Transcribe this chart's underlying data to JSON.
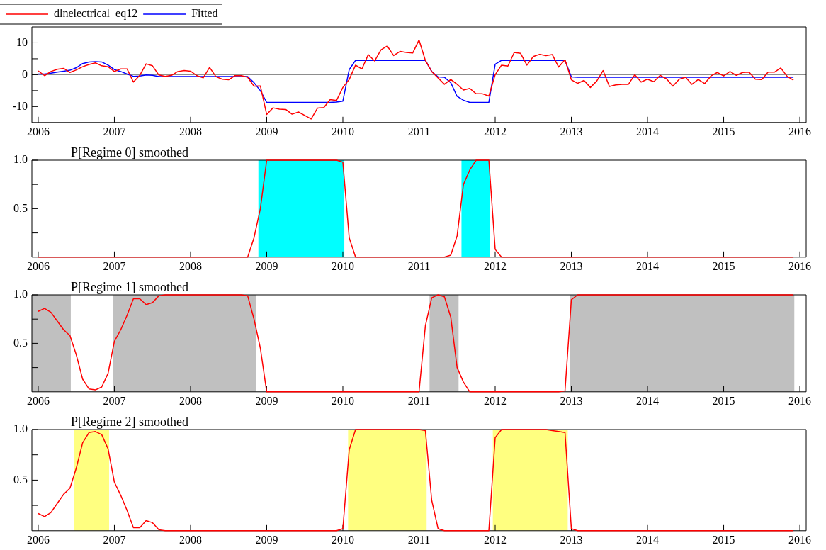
{
  "chart_data": [
    {
      "type": "line",
      "legend": "top left",
      "grid": false,
      "x": [
        "2006-01",
        "2006-02",
        "2006-03",
        "2006-04",
        "2006-05",
        "2006-06",
        "2006-07",
        "2006-08",
        "2006-09",
        "2006-10",
        "2006-11",
        "2006-12",
        "2007-01",
        "2007-02",
        "2007-03",
        "2007-04",
        "2007-05",
        "2007-06",
        "2007-07",
        "2007-08",
        "2007-09",
        "2007-10",
        "2007-11",
        "2007-12",
        "2008-01",
        "2008-02",
        "2008-03",
        "2008-04",
        "2008-05",
        "2008-06",
        "2008-07",
        "2008-08",
        "2008-09",
        "2008-10",
        "2008-11",
        "2008-12",
        "2009-01",
        "2009-02",
        "2009-03",
        "2009-04",
        "2009-05",
        "2009-06",
        "2009-07",
        "2009-08",
        "2009-09",
        "2009-10",
        "2009-11",
        "2009-12",
        "2010-01",
        "2010-02",
        "2010-03",
        "2010-04",
        "2010-05",
        "2010-06",
        "2010-07",
        "2010-08",
        "2010-09",
        "2010-10",
        "2010-11",
        "2010-12",
        "2011-01",
        "2011-02",
        "2011-03",
        "2011-04",
        "2011-05",
        "2011-06",
        "2011-07",
        "2011-08",
        "2011-09",
        "2011-10",
        "2011-11",
        "2011-12",
        "2012-01",
        "2012-02",
        "2012-03",
        "2012-04",
        "2012-05",
        "2012-06",
        "2012-07",
        "2012-08",
        "2012-09",
        "2012-10",
        "2012-11",
        "2012-12",
        "2013-01",
        "2013-02",
        "2013-03",
        "2013-04",
        "2013-05",
        "2013-06",
        "2013-07",
        "2013-08",
        "2013-09",
        "2013-10",
        "2013-11",
        "2013-12",
        "2014-01",
        "2014-02",
        "2014-03",
        "2014-04",
        "2014-05",
        "2014-06",
        "2014-07",
        "2014-08",
        "2014-09",
        "2014-10",
        "2014-11",
        "2014-12",
        "2015-01",
        "2015-02",
        "2015-03",
        "2015-04",
        "2015-05",
        "2015-06",
        "2015-07",
        "2015-08",
        "2015-09",
        "2015-10",
        "2015-11",
        "2015-12"
      ],
      "xlim": [
        "2005-12",
        "2016-02"
      ],
      "xticks": [
        "2006",
        "2007",
        "2008",
        "2009",
        "2010",
        "2011",
        "2012",
        "2013",
        "2014",
        "2015",
        "2016"
      ],
      "ylim": [
        -15,
        15
      ],
      "yticks": [
        -10,
        {
          "value": -5,
          "label": null
        },
        0,
        {
          "value": 5,
          "label": null
        },
        10
      ],
      "ref_lines": [
        {
          "axis": "y",
          "value": 0,
          "color": "#808080"
        }
      ],
      "series": [
        {
          "name": "dlnelectrical_eq12",
          "color": "#ff0000",
          "values": [
            1.2,
            -0.3,
            1.0,
            1.7,
            2.0,
            0.7,
            1.5,
            2.5,
            3.2,
            3.7,
            2.8,
            2.5,
            1.0,
            1.8,
            1.8,
            -2.3,
            -0.2,
            3.4,
            2.8,
            -0.1,
            -0.5,
            -0.2,
            1.0,
            1.3,
            1.1,
            -0.3,
            -1.0,
            2.3,
            -0.6,
            -1.4,
            -1.6,
            -0.3,
            -0.3,
            -0.8,
            -3.6,
            -3.5,
            -12.5,
            -10.4,
            -10.8,
            -10.9,
            -12.4,
            -11.7,
            -12.8,
            -13.9,
            -10.5,
            -10.3,
            -7.8,
            -8.1,
            -4.0,
            -1.5,
            3.0,
            1.8,
            6.3,
            4.3,
            7.8,
            9.0,
            6.0,
            7.3,
            7.0,
            6.8,
            10.9,
            4.5,
            1.0,
            -1.0,
            -3.0,
            -1.5,
            -3.0,
            -4.8,
            -4.3,
            -6.0,
            -6.0,
            -6.7,
            0.0,
            3.0,
            2.7,
            7.0,
            6.7,
            3.0,
            5.7,
            6.4,
            6.0,
            6.3,
            2.4,
            4.7,
            -1.6,
            -2.7,
            -1.8,
            -4.0,
            -2.0,
            1.3,
            -3.7,
            -3.2,
            -3.0,
            -3.0,
            0.0,
            -2.3,
            -1.4,
            -2.2,
            -0.2,
            -1.3,
            -3.6,
            -1.4,
            -0.8,
            -3.0,
            -1.5,
            -2.8,
            -0.4,
            0.7,
            -0.4,
            1.0,
            -0.2,
            0.7,
            0.8,
            -1.4,
            -1.5,
            0.8,
            0.8,
            2.1,
            -0.5,
            -1.7
          ]
        },
        {
          "name": "Fitted",
          "color": "#0000ff",
          "values": [
            0.2,
            0.2,
            0.5,
            0.8,
            1.1,
            1.4,
            2.2,
            3.5,
            4.0,
            4.1,
            4.0,
            3.0,
            1.6,
            1.0,
            0.2,
            -0.5,
            -0.4,
            -0.1,
            -0.2,
            -0.6,
            -0.6,
            -0.6,
            -0.6,
            -0.6,
            -0.6,
            -0.6,
            -0.6,
            -0.6,
            -0.6,
            -0.6,
            -0.6,
            -0.6,
            -0.6,
            -0.6,
            -2.5,
            -5.0,
            -8.7,
            -8.7,
            -8.7,
            -8.7,
            -8.7,
            -8.7,
            -8.7,
            -8.7,
            -8.7,
            -8.7,
            -8.7,
            -8.6,
            -8.3,
            1.6,
            4.5,
            4.5,
            4.5,
            4.5,
            4.5,
            4.5,
            4.5,
            4.5,
            4.5,
            4.5,
            4.5,
            4.5,
            1.0,
            -0.7,
            -0.8,
            -2.5,
            -6.8,
            -8.0,
            -8.7,
            -8.7,
            -8.7,
            -8.7,
            3.3,
            4.5,
            4.5,
            4.5,
            4.5,
            4.5,
            4.5,
            4.5,
            4.5,
            4.5,
            4.5,
            4.5,
            -0.7,
            -0.8,
            -0.8,
            -0.8,
            -0.8,
            -0.8,
            -0.8,
            -0.8,
            -0.8,
            -0.8,
            -0.8,
            -0.8,
            -0.8,
            -0.8,
            -0.8,
            -0.8,
            -0.8,
            -0.8,
            -0.8,
            -0.8,
            -0.8,
            -0.8,
            -0.8,
            -0.8,
            -0.8,
            -0.8,
            -0.8,
            -0.8,
            -0.8,
            -0.8,
            -0.8,
            -0.8,
            -0.8,
            -0.8,
            -0.8,
            -0.8
          ]
        }
      ]
    },
    {
      "type": "line",
      "title": "P[Regime 0] smoothed",
      "grid": false,
      "x": [
        "2006-01",
        "2006-02",
        "2006-03",
        "2006-04",
        "2006-05",
        "2006-06",
        "2006-07",
        "2006-08",
        "2006-09",
        "2006-10",
        "2006-11",
        "2006-12",
        "2007-01",
        "2007-02",
        "2007-03",
        "2007-04",
        "2007-05",
        "2007-06",
        "2007-07",
        "2007-08",
        "2007-09",
        "2007-10",
        "2007-11",
        "2007-12",
        "2008-01",
        "2008-02",
        "2008-03",
        "2008-04",
        "2008-05",
        "2008-06",
        "2008-07",
        "2008-08",
        "2008-09",
        "2008-10",
        "2008-11",
        "2008-12",
        "2009-01",
        "2009-02",
        "2009-03",
        "2009-04",
        "2009-05",
        "2009-06",
        "2009-07",
        "2009-08",
        "2009-09",
        "2009-10",
        "2009-11",
        "2009-12",
        "2010-01",
        "2010-02",
        "2010-03",
        "2010-04",
        "2010-05",
        "2010-06",
        "2010-07",
        "2010-08",
        "2010-09",
        "2010-10",
        "2010-11",
        "2010-12",
        "2011-01",
        "2011-02",
        "2011-03",
        "2011-04",
        "2011-05",
        "2011-06",
        "2011-07",
        "2011-08",
        "2011-09",
        "2011-10",
        "2011-11",
        "2011-12",
        "2012-01",
        "2012-02",
        "2012-03",
        "2012-04",
        "2012-05",
        "2012-06",
        "2012-07",
        "2012-08",
        "2012-09",
        "2012-10",
        "2012-11",
        "2012-12",
        "2013-01",
        "2013-02",
        "2013-03",
        "2013-04",
        "2013-05",
        "2013-06",
        "2013-07",
        "2013-08",
        "2013-09",
        "2013-10",
        "2013-11",
        "2013-12",
        "2014-01",
        "2014-02",
        "2014-03",
        "2014-04",
        "2014-05",
        "2014-06",
        "2014-07",
        "2014-08",
        "2014-09",
        "2014-10",
        "2014-11",
        "2014-12",
        "2015-01",
        "2015-02",
        "2015-03",
        "2015-04",
        "2015-05",
        "2015-06",
        "2015-07",
        "2015-08",
        "2015-09",
        "2015-10",
        "2015-11",
        "2015-12"
      ],
      "xlim": [
        "2005-12",
        "2016-02"
      ],
      "xticks": [
        "2006",
        "2007",
        "2008",
        "2009",
        "2010",
        "2011",
        "2012",
        "2013",
        "2014",
        "2015",
        "2016"
      ],
      "ylim": [
        0,
        1
      ],
      "yticks": [
        {
          "value": 0.25,
          "label": null
        },
        0.5,
        {
          "value": 0.75,
          "label": null
        },
        {
          "value": 1,
          "label": "1.0"
        }
      ],
      "bands": [
        {
          "axis": "x",
          "from": "2008-11-22",
          "to": "2010-01-08",
          "color": "#00ffff"
        },
        {
          "axis": "x",
          "from": "2011-07-22",
          "to": "2011-12-06",
          "color": "#00ffff"
        }
      ],
      "series": [
        {
          "color": "#ff0000",
          "values": [
            0,
            0,
            0,
            0,
            0,
            0,
            0,
            0,
            0,
            0,
            0,
            0,
            0,
            0,
            0,
            0,
            0,
            0,
            0,
            0,
            0,
            0,
            0,
            0,
            0,
            0,
            0,
            0,
            0,
            0,
            0,
            0,
            0,
            0,
            0.2,
            0.5,
            1,
            1,
            1,
            1,
            1,
            1,
            1,
            1,
            1,
            1,
            1,
            1,
            0.98,
            0.2,
            0,
            0,
            0,
            0,
            0,
            0,
            0,
            0,
            0,
            0,
            0,
            0,
            0,
            0,
            0,
            0.02,
            0.22,
            0.75,
            0.9,
            1,
            1,
            1,
            0.08,
            0,
            0,
            0,
            0,
            0,
            0,
            0,
            0,
            0,
            0,
            0,
            0,
            0,
            0,
            0,
            0,
            0,
            0,
            0,
            0,
            0,
            0,
            0,
            0,
            0,
            0,
            0,
            0,
            0,
            0,
            0,
            0,
            0,
            0,
            0,
            0,
            0,
            0,
            0,
            0,
            0,
            0,
            0,
            0,
            0,
            0,
            0
          ]
        }
      ]
    },
    {
      "type": "line",
      "title": "P[Regime 1] smoothed",
      "grid": false,
      "x": [
        "2006-01",
        "2006-02",
        "2006-03",
        "2006-04",
        "2006-05",
        "2006-06",
        "2006-07",
        "2006-08",
        "2006-09",
        "2006-10",
        "2006-11",
        "2006-12",
        "2007-01",
        "2007-02",
        "2007-03",
        "2007-04",
        "2007-05",
        "2007-06",
        "2007-07",
        "2007-08",
        "2007-09",
        "2007-10",
        "2007-11",
        "2007-12",
        "2008-01",
        "2008-02",
        "2008-03",
        "2008-04",
        "2008-05",
        "2008-06",
        "2008-07",
        "2008-08",
        "2008-09",
        "2008-10",
        "2008-11",
        "2008-12",
        "2009-01",
        "2009-02",
        "2009-03",
        "2009-04",
        "2009-05",
        "2009-06",
        "2009-07",
        "2009-08",
        "2009-09",
        "2009-10",
        "2009-11",
        "2009-12",
        "2010-01",
        "2010-02",
        "2010-03",
        "2010-04",
        "2010-05",
        "2010-06",
        "2010-07",
        "2010-08",
        "2010-09",
        "2010-10",
        "2010-11",
        "2010-12",
        "2011-01",
        "2011-02",
        "2011-03",
        "2011-04",
        "2011-05",
        "2011-06",
        "2011-07",
        "2011-08",
        "2011-09",
        "2011-10",
        "2011-11",
        "2011-12",
        "2012-01",
        "2012-02",
        "2012-03",
        "2012-04",
        "2012-05",
        "2012-06",
        "2012-07",
        "2012-08",
        "2012-09",
        "2012-10",
        "2012-11",
        "2012-12",
        "2013-01",
        "2013-02",
        "2013-03",
        "2013-04",
        "2013-05",
        "2013-06",
        "2013-07",
        "2013-08",
        "2013-09",
        "2013-10",
        "2013-11",
        "2013-12",
        "2014-01",
        "2014-02",
        "2014-03",
        "2014-04",
        "2014-05",
        "2014-06",
        "2014-07",
        "2014-08",
        "2014-09",
        "2014-10",
        "2014-11",
        "2014-12",
        "2015-01",
        "2015-02",
        "2015-03",
        "2015-04",
        "2015-05",
        "2015-06",
        "2015-07",
        "2015-08",
        "2015-09",
        "2015-10",
        "2015-11",
        "2015-12"
      ],
      "xlim": [
        "2005-12",
        "2016-02"
      ],
      "xticks": [
        "2006",
        "2007",
        "2008",
        "2009",
        "2010",
        "2011",
        "2012",
        "2013",
        "2014",
        "2015",
        "2016"
      ],
      "ylim": [
        0,
        1
      ],
      "yticks": [
        {
          "value": 0.25,
          "label": null
        },
        0.5,
        {
          "value": 0.75,
          "label": null
        },
        {
          "value": 1,
          "label": "1.0"
        }
      ],
      "bands": [
        {
          "axis": "x",
          "from": "2005-12",
          "to": "2006-06-05",
          "color": "#c0c0c0"
        },
        {
          "axis": "x",
          "from": "2006-12-24",
          "to": "2008-11-12",
          "color": "#c0c0c0"
        },
        {
          "axis": "x",
          "from": "2011-02-21",
          "to": "2011-07-08",
          "color": "#c0c0c0"
        },
        {
          "axis": "x",
          "from": "2012-12-24",
          "to": "2015-12-05",
          "color": "#c0c0c0"
        }
      ],
      "series": [
        {
          "color": "#ff0000",
          "values": [
            0.83,
            0.86,
            0.82,
            0.73,
            0.64,
            0.58,
            0.38,
            0.13,
            0.03,
            0.02,
            0.05,
            0.19,
            0.52,
            0.64,
            0.79,
            0.96,
            0.96,
            0.9,
            0.92,
            0.99,
            1,
            1,
            1,
            1,
            1,
            1,
            1,
            1,
            1,
            1,
            1,
            1,
            1,
            0.99,
            0.75,
            0.45,
            0,
            0,
            0,
            0,
            0,
            0,
            0,
            0,
            0,
            0,
            0,
            0,
            0,
            0,
            0,
            0,
            0,
            0,
            0,
            0,
            0,
            0,
            0,
            0,
            0,
            0.68,
            0.97,
            1,
            0.98,
            0.77,
            0.25,
            0.1,
            0,
            0,
            0,
            0,
            0,
            0,
            0,
            0,
            0,
            0,
            0,
            0,
            0,
            0,
            0,
            0.01,
            0.95,
            1,
            1,
            1,
            1,
            1,
            1,
            1,
            1,
            1,
            1,
            1,
            1,
            1,
            1,
            1,
            1,
            1,
            1,
            1,
            1,
            1,
            1,
            1,
            1,
            1,
            1,
            1,
            1,
            1,
            1,
            1,
            1,
            1,
            1,
            1
          ]
        }
      ]
    },
    {
      "type": "line",
      "title": "P[Regime 2] smoothed",
      "grid": false,
      "x": [
        "2006-01",
        "2006-02",
        "2006-03",
        "2006-04",
        "2006-05",
        "2006-06",
        "2006-07",
        "2006-08",
        "2006-09",
        "2006-10",
        "2006-11",
        "2006-12",
        "2007-01",
        "2007-02",
        "2007-03",
        "2007-04",
        "2007-05",
        "2007-06",
        "2007-07",
        "2007-08",
        "2007-09",
        "2007-10",
        "2007-11",
        "2007-12",
        "2008-01",
        "2008-02",
        "2008-03",
        "2008-04",
        "2008-05",
        "2008-06",
        "2008-07",
        "2008-08",
        "2008-09",
        "2008-10",
        "2008-11",
        "2008-12",
        "2009-01",
        "2009-02",
        "2009-03",
        "2009-04",
        "2009-05",
        "2009-06",
        "2009-07",
        "2009-08",
        "2009-09",
        "2009-10",
        "2009-11",
        "2009-12",
        "2010-01",
        "2010-02",
        "2010-03",
        "2010-04",
        "2010-05",
        "2010-06",
        "2010-07",
        "2010-08",
        "2010-09",
        "2010-10",
        "2010-11",
        "2010-12",
        "2011-01",
        "2011-02",
        "2011-03",
        "2011-04",
        "2011-05",
        "2011-06",
        "2011-07",
        "2011-08",
        "2011-09",
        "2011-10",
        "2011-11",
        "2011-12",
        "2012-01",
        "2012-02",
        "2012-03",
        "2012-04",
        "2012-05",
        "2012-06",
        "2012-07",
        "2012-08",
        "2012-09",
        "2012-10",
        "2012-11",
        "2012-12",
        "2013-01",
        "2013-02",
        "2013-03",
        "2013-04",
        "2013-05",
        "2013-06",
        "2013-07",
        "2013-08",
        "2013-09",
        "2013-10",
        "2013-11",
        "2013-12",
        "2014-01",
        "2014-02",
        "2014-03",
        "2014-04",
        "2014-05",
        "2014-06",
        "2014-07",
        "2014-08",
        "2014-09",
        "2014-10",
        "2014-11",
        "2014-12",
        "2015-01",
        "2015-02",
        "2015-03",
        "2015-04",
        "2015-05",
        "2015-06",
        "2015-07",
        "2015-08",
        "2015-09",
        "2015-10",
        "2015-11",
        "2015-12"
      ],
      "xlim": [
        "2005-12",
        "2016-02"
      ],
      "xticks": [
        "2006",
        "2007",
        "2008",
        "2009",
        "2010",
        "2011",
        "2012",
        "2013",
        "2014",
        "2015",
        "2016"
      ],
      "ylim": [
        0,
        1
      ],
      "yticks": [
        {
          "value": 0.25,
          "label": null
        },
        0.5,
        {
          "value": 0.75,
          "label": null
        },
        {
          "value": 1,
          "label": "1.0"
        }
      ],
      "bands": [
        {
          "axis": "x",
          "from": "2006-06-21",
          "to": "2006-12-06",
          "color": "#ffff80"
        },
        {
          "axis": "x",
          "from": "2010-01-26",
          "to": "2011-02-07",
          "color": "#ffff80"
        },
        {
          "axis": "x",
          "from": "2011-12-20",
          "to": "2012-12-14",
          "color": "#ffff80"
        }
      ],
      "series": [
        {
          "color": "#ff0000",
          "values": [
            0.17,
            0.14,
            0.18,
            0.27,
            0.36,
            0.42,
            0.62,
            0.87,
            0.97,
            0.98,
            0.95,
            0.81,
            0.48,
            0.35,
            0.2,
            0.03,
            0.03,
            0.1,
            0.08,
            0.01,
            0,
            0,
            0,
            0,
            0,
            0,
            0,
            0,
            0,
            0,
            0,
            0,
            0,
            0,
            0,
            0,
            0,
            0,
            0,
            0,
            0,
            0,
            0,
            0,
            0,
            0,
            0,
            0,
            0.02,
            0.8,
            1,
            1,
            1,
            1,
            1,
            1,
            1,
            1,
            1,
            1,
            1,
            0.99,
            0.3,
            0.02,
            0,
            0,
            0,
            0,
            0,
            0,
            0,
            0,
            0.92,
            1,
            1,
            1,
            1,
            1,
            1,
            1,
            1,
            0.99,
            0.98,
            0.97,
            0.02,
            0,
            0,
            0,
            0,
            0,
            0,
            0,
            0,
            0,
            0,
            0,
            0,
            0,
            0,
            0,
            0,
            0,
            0,
            0,
            0,
            0,
            0,
            0,
            0,
            0,
            0,
            0,
            0,
            0,
            0,
            0,
            0,
            0,
            0,
            0
          ]
        }
      ]
    }
  ]
}
